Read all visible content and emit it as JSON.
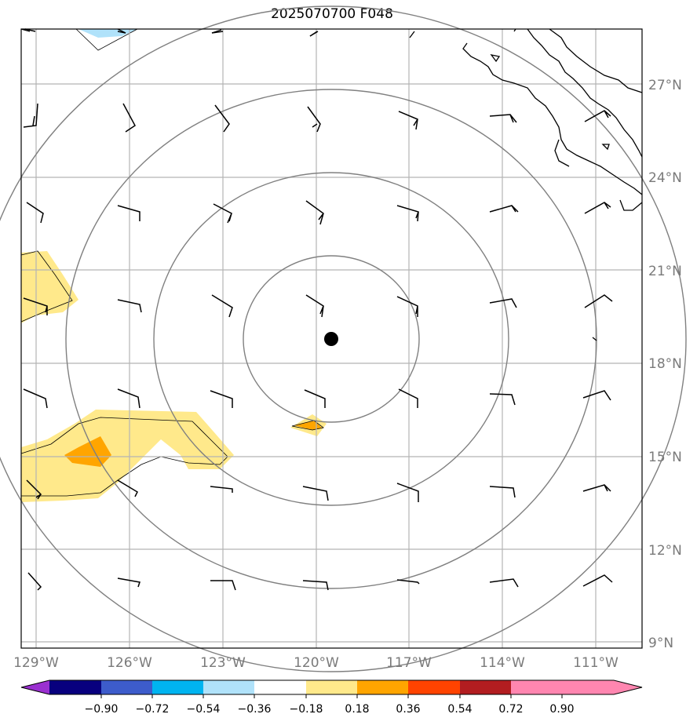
{
  "title": "2025070700 F048",
  "lat_labels": [
    "27°N",
    "24°N",
    "21°N",
    "18°N",
    "15°N",
    "12°N",
    "9°N"
  ],
  "lon_labels": [
    "129°W",
    "126°W",
    "123°W",
    "120°W",
    "117°W",
    "114°W",
    "111°W"
  ],
  "colorbar": {
    "labels": [
      "−0.90",
      "−0.72",
      "−0.54",
      "−0.36",
      "−0.18",
      "0.18",
      "0.36",
      "0.54",
      "0.72",
      "0.90"
    ],
    "colors": [
      "#9a30d0",
      "#08007e",
      "#3d5ccb",
      "#00b4f0",
      "#b0e2fa",
      "#ffffff",
      "#ffe98b",
      "#ffa500",
      "#ff4300",
      "#b21d20",
      "#ff86b0"
    ]
  },
  "center_marker": "storm-center-dot"
}
